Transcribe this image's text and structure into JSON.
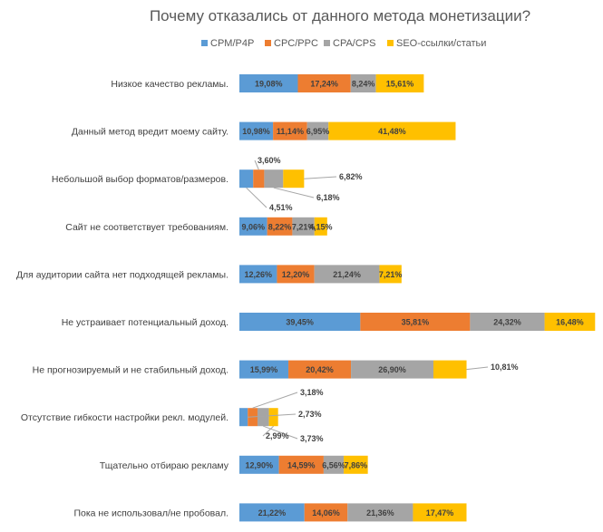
{
  "chart_data": {
    "type": "bar",
    "orientation": "horizontal",
    "stacked": true,
    "title": "Почему отказались от данного метода монетизации?",
    "legend_position": "top",
    "categories": [
      "Низкое качество рекламы.",
      "Данный метод вредит моему сайту.",
      "Небольшой выбор форматов/размеров.",
      "Сайт не соответствует требованиям.",
      "Для аудитории сайта нет подходящей рекламы.",
      "Не устраивает потенциальный доход.",
      "Не прогнозируемый и не стабильный доход.",
      "Отсутствие гибкости настройки рекл. модулей.",
      "Тщательно отбираю рекламу",
      "Пока не использовал/не пробовал."
    ],
    "series": [
      {
        "name": "CPM/P4P",
        "color": "#5b9bd5",
        "values": [
          19.08,
          10.98,
          4.51,
          9.06,
          12.26,
          39.45,
          15.99,
          2.73,
          12.9,
          21.22
        ],
        "labels": [
          "19,08%",
          "10,98%",
          "4,51%",
          "9,06%",
          "12,26%",
          "39,45%",
          "15,99%",
          "2,73%",
          "12,90%",
          "21,22%"
        ]
      },
      {
        "name": "CPC/PPC",
        "color": "#ed7d31",
        "values": [
          17.24,
          11.14,
          3.6,
          8.22,
          12.2,
          35.81,
          20.42,
          3.18,
          14.59,
          14.06
        ],
        "labels": [
          "17,24%",
          "11,14%",
          "3,60%",
          "8,22%",
          "12,20%",
          "35,81%",
          "20,42%",
          "3,18%",
          "14,59%",
          "14,06%"
        ]
      },
      {
        "name": "CPA/CPS",
        "color": "#a5a5a5",
        "values": [
          8.24,
          6.95,
          6.18,
          7.21,
          21.24,
          24.32,
          26.9,
          3.73,
          6.56,
          21.36
        ],
        "labels": [
          "8,24%",
          "6,95%",
          "6,18%",
          "7,21%",
          "21,24%",
          "24,32%",
          "26,90%",
          "3,73%",
          "6,56%",
          "21,36%"
        ]
      },
      {
        "name": "SEO-ссылки/статьи",
        "color": "#ffc000",
        "values": [
          15.61,
          41.48,
          6.82,
          4.15,
          7.21,
          16.48,
          10.81,
          2.99,
          7.86,
          17.47
        ],
        "labels": [
          "15,61%",
          "41,48%",
          "6,82%",
          "4,15%",
          "7,21%",
          "16,48%",
          "10,81%",
          "2,99%",
          "7,86%",
          "17,47%"
        ]
      }
    ]
  }
}
